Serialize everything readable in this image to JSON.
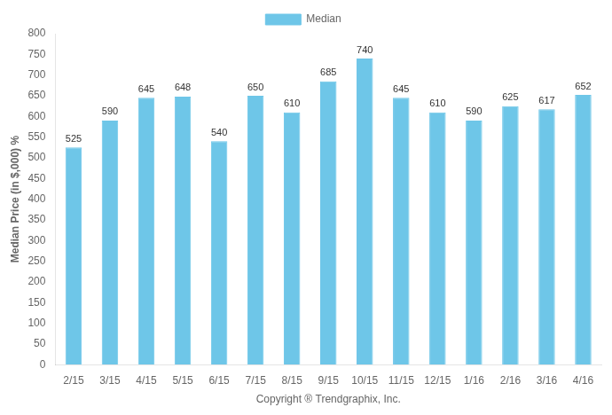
{
  "chart_data": {
    "type": "bar",
    "categories": [
      "2/15",
      "3/15",
      "4/15",
      "5/15",
      "6/15",
      "7/15",
      "8/15",
      "9/15",
      "10/15",
      "11/15",
      "12/15",
      "1/16",
      "2/16",
      "3/16",
      "4/16"
    ],
    "series": [
      {
        "name": "Median",
        "color": "#6EC6E8",
        "values": [
          525,
          590,
          645,
          648,
          540,
          650,
          610,
          685,
          740,
          645,
          610,
          590,
          625,
          617,
          652
        ]
      }
    ],
    "ylabel": "Median Price (in $,000) %",
    "xlabel": "Copyright ® Trendgraphix, Inc.",
    "ylim": [
      0,
      800
    ],
    "yticks": [
      0,
      50,
      100,
      150,
      200,
      250,
      300,
      350,
      400,
      450,
      500,
      550,
      600,
      650,
      700,
      750,
      800
    ],
    "grid": false,
    "legend": "top",
    "data_labels": true
  }
}
